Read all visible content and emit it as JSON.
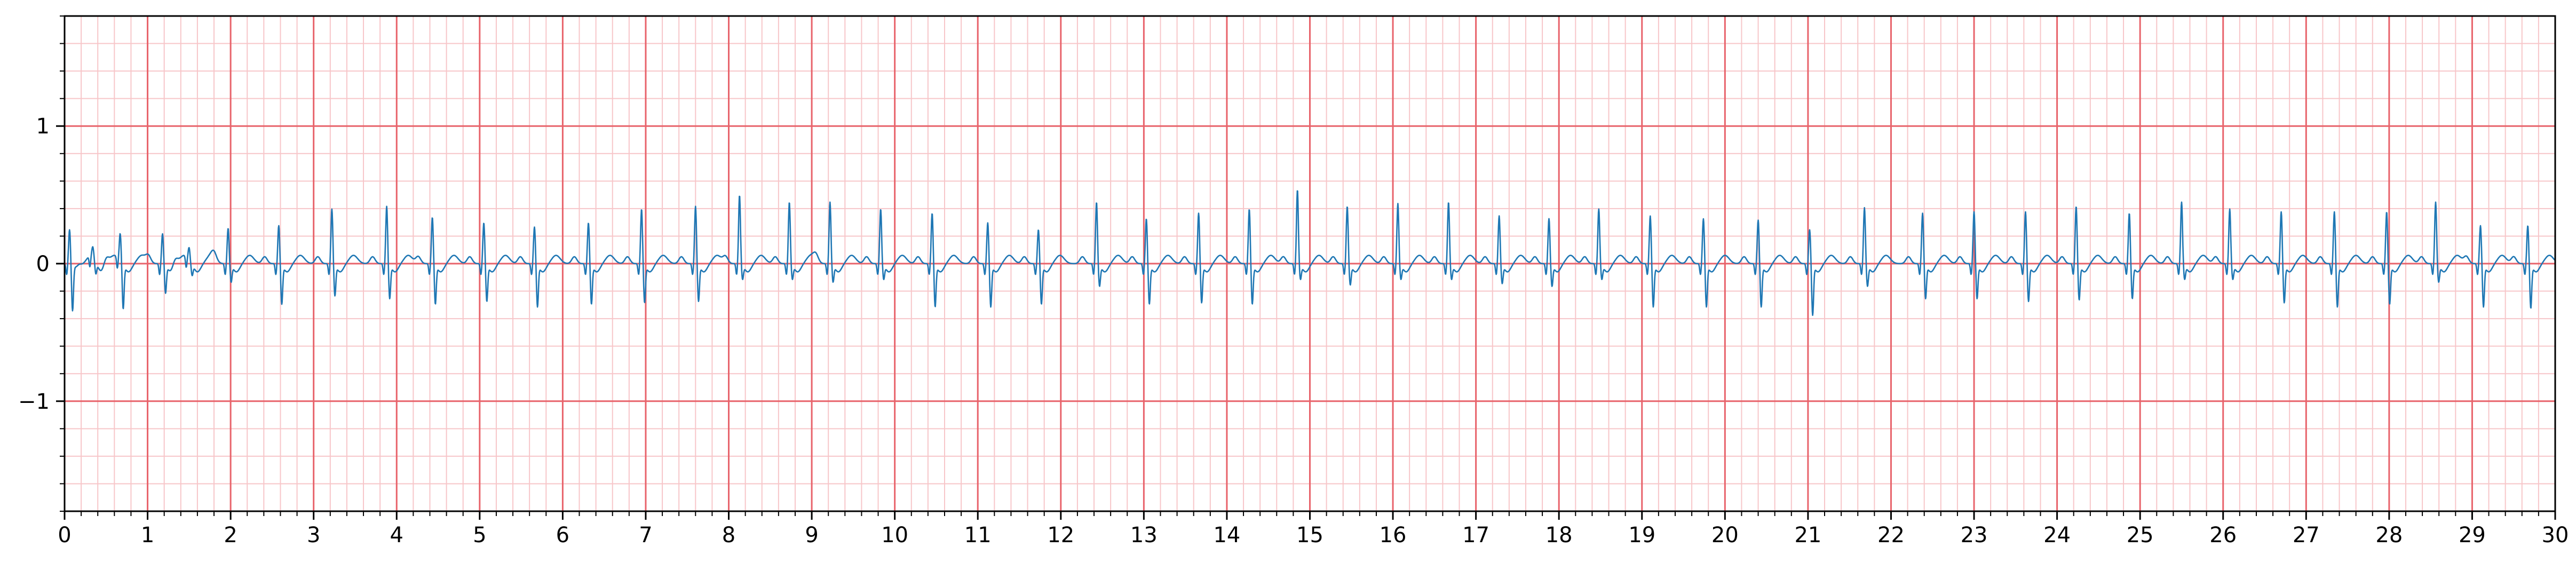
{
  "chart_data": {
    "type": "line",
    "title": "",
    "xlabel": "",
    "ylabel": "",
    "xlim": [
      0,
      30
    ],
    "ylim": [
      -1.8,
      1.8
    ],
    "x_major_ticks": [
      0,
      1,
      2,
      3,
      4,
      5,
      6,
      7,
      8,
      9,
      10,
      11,
      12,
      13,
      14,
      15,
      16,
      17,
      18,
      19,
      20,
      21,
      22,
      23,
      24,
      25,
      26,
      27,
      28,
      29,
      30
    ],
    "x_tick_labels": [
      "0",
      "1",
      "2",
      "3",
      "4",
      "5",
      "6",
      "7",
      "8",
      "9",
      "10",
      "11",
      "12",
      "13",
      "14",
      "15",
      "16",
      "17",
      "18",
      "19",
      "20",
      "21",
      "22",
      "23",
      "24",
      "25",
      "26",
      "27",
      "28",
      "29",
      "30"
    ],
    "x_minor_step": 0.2,
    "y_major_ticks": [
      -1,
      0,
      1
    ],
    "y_tick_labels": [
      "−1",
      "0",
      "1"
    ],
    "y_minor_step": 0.2,
    "grid": true,
    "grid_major_color": "#e8636b",
    "grid_minor_color": "#f7c6c9",
    "series": [
      {
        "color": "#1f77b4",
        "beats": [
          {
            "t": 0.06,
            "r": 0.25,
            "s": -0.33
          },
          {
            "t": 0.34,
            "r": 0.07,
            "s": -0.09
          },
          {
            "t": 0.67,
            "r": 0.2,
            "s": -0.32
          },
          {
            "t": 1.18,
            "r": 0.22,
            "s": -0.2
          },
          {
            "t": 1.5,
            "r": 0.09,
            "s": -0.08
          },
          {
            "t": 1.97,
            "r": 0.26,
            "s": -0.12
          },
          {
            "t": 2.58,
            "r": 0.28,
            "s": -0.28
          },
          {
            "t": 3.22,
            "r": 0.4,
            "s": -0.22
          },
          {
            "t": 3.88,
            "r": 0.42,
            "s": -0.24
          },
          {
            "t": 4.43,
            "r": 0.34,
            "s": -0.28
          },
          {
            "t": 5.05,
            "r": 0.3,
            "s": -0.26
          },
          {
            "t": 5.66,
            "r": 0.27,
            "s": -0.3
          },
          {
            "t": 6.31,
            "r": 0.3,
            "s": -0.28
          },
          {
            "t": 6.95,
            "r": 0.4,
            "s": -0.27
          },
          {
            "t": 7.6,
            "r": 0.42,
            "s": -0.26
          },
          {
            "t": 8.13,
            "r": 0.5,
            "s": -0.1
          },
          {
            "t": 8.73,
            "r": 0.45,
            "s": -0.1
          },
          {
            "t": 9.22,
            "r": 0.45,
            "s": -0.12
          },
          {
            "t": 9.83,
            "r": 0.4,
            "s": -0.1
          },
          {
            "t": 10.45,
            "r": 0.37,
            "s": -0.3
          },
          {
            "t": 11.12,
            "r": 0.3,
            "s": -0.3
          },
          {
            "t": 11.73,
            "r": 0.25,
            "s": -0.28
          },
          {
            "t": 12.43,
            "r": 0.45,
            "s": -0.15
          },
          {
            "t": 13.03,
            "r": 0.33,
            "s": -0.28
          },
          {
            "t": 13.66,
            "r": 0.37,
            "s": -0.27
          },
          {
            "t": 14.27,
            "r": 0.4,
            "s": -0.28
          },
          {
            "t": 14.85,
            "r": 0.54,
            "s": -0.1
          },
          {
            "t": 15.45,
            "r": 0.42,
            "s": -0.14
          },
          {
            "t": 16.06,
            "r": 0.44,
            "s": -0.1
          },
          {
            "t": 16.67,
            "r": 0.45,
            "s": -0.1
          },
          {
            "t": 17.28,
            "r": 0.35,
            "s": -0.13
          },
          {
            "t": 17.88,
            "r": 0.33,
            "s": -0.15
          },
          {
            "t": 18.48,
            "r": 0.4,
            "s": -0.1
          },
          {
            "t": 19.1,
            "r": 0.35,
            "s": -0.3
          },
          {
            "t": 19.74,
            "r": 0.33,
            "s": -0.3
          },
          {
            "t": 20.4,
            "r": 0.32,
            "s": -0.3
          },
          {
            "t": 21.02,
            "r": 0.25,
            "s": -0.36
          },
          {
            "t": 21.68,
            "r": 0.41,
            "s": -0.15
          },
          {
            "t": 22.38,
            "r": 0.37,
            "s": -0.24
          },
          {
            "t": 23.0,
            "r": 0.38,
            "s": -0.24
          },
          {
            "t": 23.62,
            "r": 0.38,
            "s": -0.26
          },
          {
            "t": 24.23,
            "r": 0.42,
            "s": -0.25
          },
          {
            "t": 24.87,
            "r": 0.37,
            "s": -0.24
          },
          {
            "t": 25.5,
            "r": 0.45,
            "s": -0.1
          },
          {
            "t": 26.08,
            "r": 0.4,
            "s": -0.1
          },
          {
            "t": 26.7,
            "r": 0.38,
            "s": -0.27
          },
          {
            "t": 27.34,
            "r": 0.38,
            "s": -0.3
          },
          {
            "t": 27.97,
            "r": 0.38,
            "s": -0.28
          },
          {
            "t": 28.56,
            "r": 0.45,
            "s": -0.12
          },
          {
            "t": 29.1,
            "r": 0.28,
            "s": -0.3
          },
          {
            "t": 29.67,
            "r": 0.28,
            "s": -0.31
          }
        ]
      }
    ]
  }
}
